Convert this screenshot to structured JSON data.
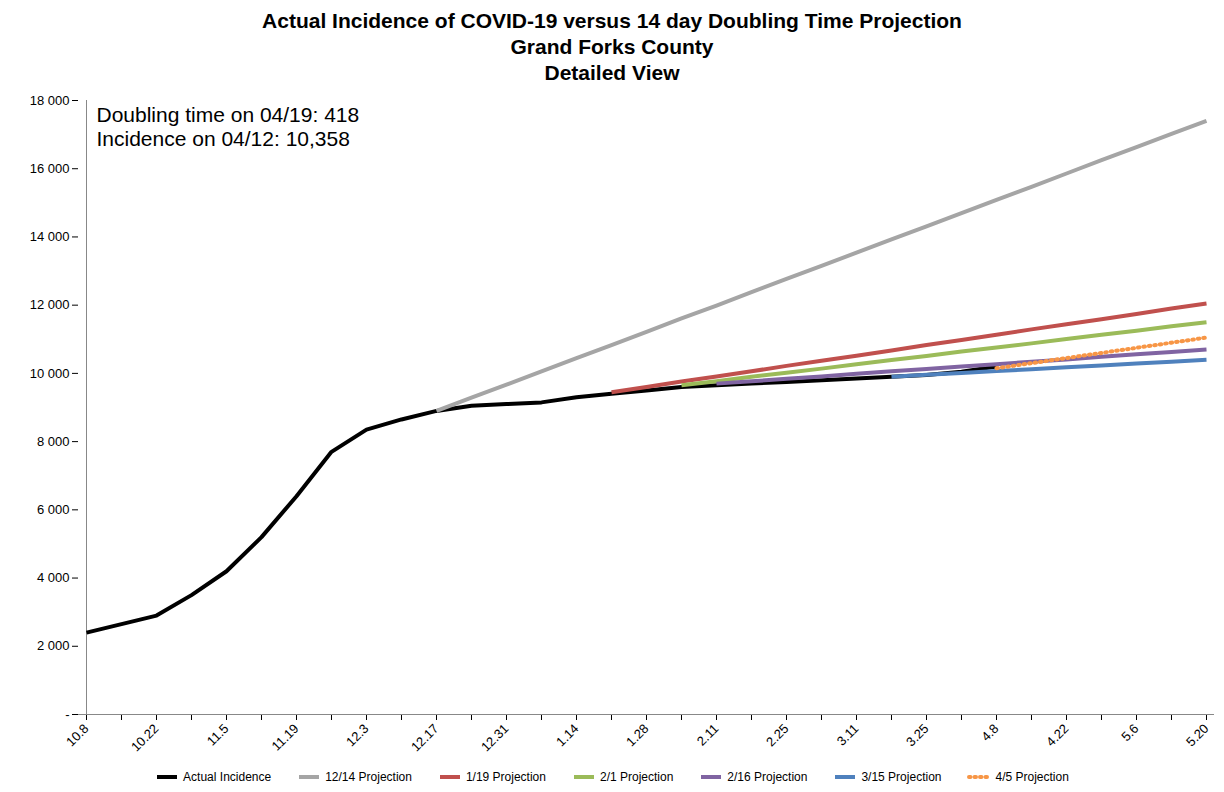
{
  "chart_data": {
    "type": "line",
    "title": [
      "Actual Incidence of COVID-19 versus 14 day Doubling Time Projection",
      "Grand Forks County",
      "Detailed View"
    ],
    "annotations": [
      "Doubling time on 04/19: 418",
      "Incidence on 04/12: 10,358"
    ],
    "categories": [
      "10.8",
      null,
      "10.22",
      null,
      "11.5",
      null,
      "11.19",
      null,
      "12.3",
      null,
      "12.17",
      null,
      "12.31",
      null,
      "1.14",
      null,
      "1.28",
      null,
      "2.11",
      null,
      "2.25",
      null,
      "3.11",
      null,
      "3.25",
      null,
      "4.8",
      null,
      "4.22",
      null,
      "5.6",
      null,
      "5.20"
    ],
    "ylim": [
      0,
      18000
    ],
    "yticks": [
      {
        "value": 0,
        "label": "-"
      },
      {
        "value": 2000,
        "label": "2 000"
      },
      {
        "value": 4000,
        "label": "4 000"
      },
      {
        "value": 6000,
        "label": "6 000"
      },
      {
        "value": 8000,
        "label": "8 000"
      },
      {
        "value": 10000,
        "label": "10 000"
      },
      {
        "value": 12000,
        "label": "12 000"
      },
      {
        "value": 14000,
        "label": "14 000"
      },
      {
        "value": 16000,
        "label": "16 000"
      },
      {
        "value": 18000,
        "label": "18 000"
      }
    ],
    "grid": false,
    "legend": "bottom",
    "series": [
      {
        "name": "Actual Incidence",
        "color": "#000000",
        "values": [
          2400,
          2650,
          2900,
          3500,
          4200,
          5200,
          6400,
          7700,
          8350,
          8650,
          8900,
          9050,
          9100,
          9150,
          9300,
          9400,
          9500,
          9600,
          9650,
          9700,
          9750,
          9800,
          9850,
          9900,
          9950,
          10050,
          10200,
          null,
          null,
          null,
          null,
          null,
          null
        ]
      },
      {
        "name": "12/14 Projection",
        "color": "#a5a5a5",
        "values": [
          null,
          null,
          null,
          null,
          null,
          null,
          null,
          null,
          null,
          null,
          8900,
          9290,
          9670,
          10060,
          10450,
          10830,
          11220,
          11610,
          11990,
          12380,
          12770,
          13150,
          13540,
          13930,
          14310,
          14700,
          15090,
          15470,
          15860,
          16250,
          16630,
          17020,
          17400
        ]
      },
      {
        "name": "1/19 Projection",
        "color": "#c0504d",
        "values": [
          null,
          null,
          null,
          null,
          null,
          null,
          null,
          null,
          null,
          null,
          null,
          null,
          null,
          null,
          null,
          9450,
          9600,
          9760,
          9910,
          10060,
          10220,
          10370,
          10520,
          10670,
          10830,
          10980,
          11130,
          11290,
          11440,
          11590,
          11740,
          11900,
          12050
        ]
      },
      {
        "name": "2/1 Projection",
        "color": "#9bbb59",
        "values": [
          null,
          null,
          null,
          null,
          null,
          null,
          null,
          null,
          null,
          null,
          null,
          null,
          null,
          null,
          null,
          null,
          null,
          9650,
          9770,
          9900,
          10020,
          10140,
          10270,
          10390,
          10510,
          10640,
          10760,
          10880,
          11010,
          11130,
          11250,
          11380,
          11500
        ]
      },
      {
        "name": "2/16 Projection",
        "color": "#8064a2",
        "values": [
          null,
          null,
          null,
          null,
          null,
          null,
          null,
          null,
          null,
          null,
          null,
          null,
          null,
          null,
          null,
          null,
          null,
          null,
          9700,
          9770,
          9840,
          9910,
          9990,
          10060,
          10130,
          10200,
          10270,
          10340,
          10410,
          10490,
          10560,
          10630,
          10700
        ]
      },
      {
        "name": "3/15 Projection",
        "color": "#4f81bd",
        "values": [
          null,
          null,
          null,
          null,
          null,
          null,
          null,
          null,
          null,
          null,
          null,
          null,
          null,
          null,
          null,
          null,
          null,
          null,
          null,
          null,
          null,
          null,
          null,
          9900,
          9960,
          10010,
          10070,
          10120,
          10180,
          10230,
          10290,
          10340,
          10400
        ]
      },
      {
        "name": "4/5 Projection",
        "color": "#f79646",
        "line_style": "dotted",
        "values": [
          null,
          null,
          null,
          null,
          null,
          null,
          null,
          null,
          null,
          null,
          null,
          null,
          null,
          null,
          null,
          null,
          null,
          null,
          null,
          null,
          null,
          null,
          null,
          null,
          null,
          null,
          10150,
          10300,
          10450,
          10600,
          10750,
          10900,
          11050
        ]
      }
    ]
  }
}
